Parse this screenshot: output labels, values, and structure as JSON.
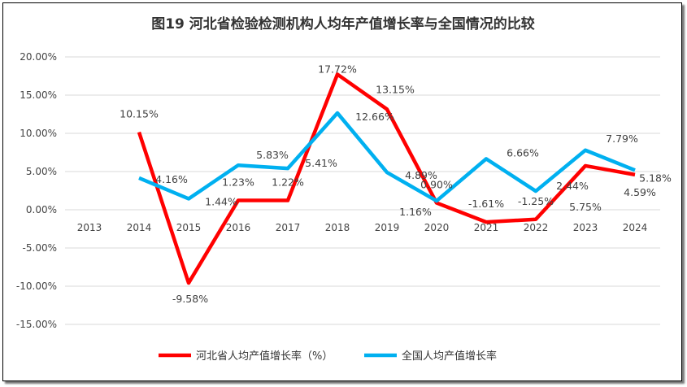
{
  "chart_data": {
    "type": "line",
    "title": "图19   河北省检验检测机构人均年产值增长率与全国情况的比较",
    "categories": [
      "2013",
      "2014",
      "2015",
      "2016",
      "2017",
      "2018",
      "2019",
      "2020",
      "2021",
      "2022",
      "2023",
      "2024"
    ],
    "ylim": [
      -15,
      20
    ],
    "yticks": [
      "20.00%",
      "15.00%",
      "10.00%",
      "5.00%",
      "0.00%",
      "-5.00%",
      "-10.00%",
      "-15.00%"
    ],
    "grid": true,
    "legend_placement": "bottom",
    "series": [
      {
        "name": "河北省人均产值增长率（%）",
        "color": "#ff0000",
        "values": [
          null,
          10.15,
          -9.58,
          1.23,
          1.22,
          17.72,
          13.15,
          0.9,
          -1.61,
          -1.25,
          5.75,
          4.59
        ],
        "labels": [
          "",
          "10.15%",
          "-9.58%",
          "1.23%",
          "1.22%",
          "17.72%",
          "13.15%",
          "0.90%",
          "-1.61%",
          "-1.25%",
          "5.75%",
          "4.59%"
        ]
      },
      {
        "name": "全国人均产值增长率",
        "color": "#00b0f0",
        "values": [
          null,
          4.16,
          1.44,
          5.83,
          5.41,
          12.66,
          4.89,
          1.16,
          6.66,
          2.44,
          7.79,
          5.18
        ],
        "labels": [
          "",
          "4.16%",
          "1.44%",
          "5.83%",
          "5.41%",
          "12.66%",
          "4.89%",
          "1.16%",
          "6.66%",
          "2.44%",
          "7.79%",
          "5.18%"
        ]
      }
    ]
  }
}
